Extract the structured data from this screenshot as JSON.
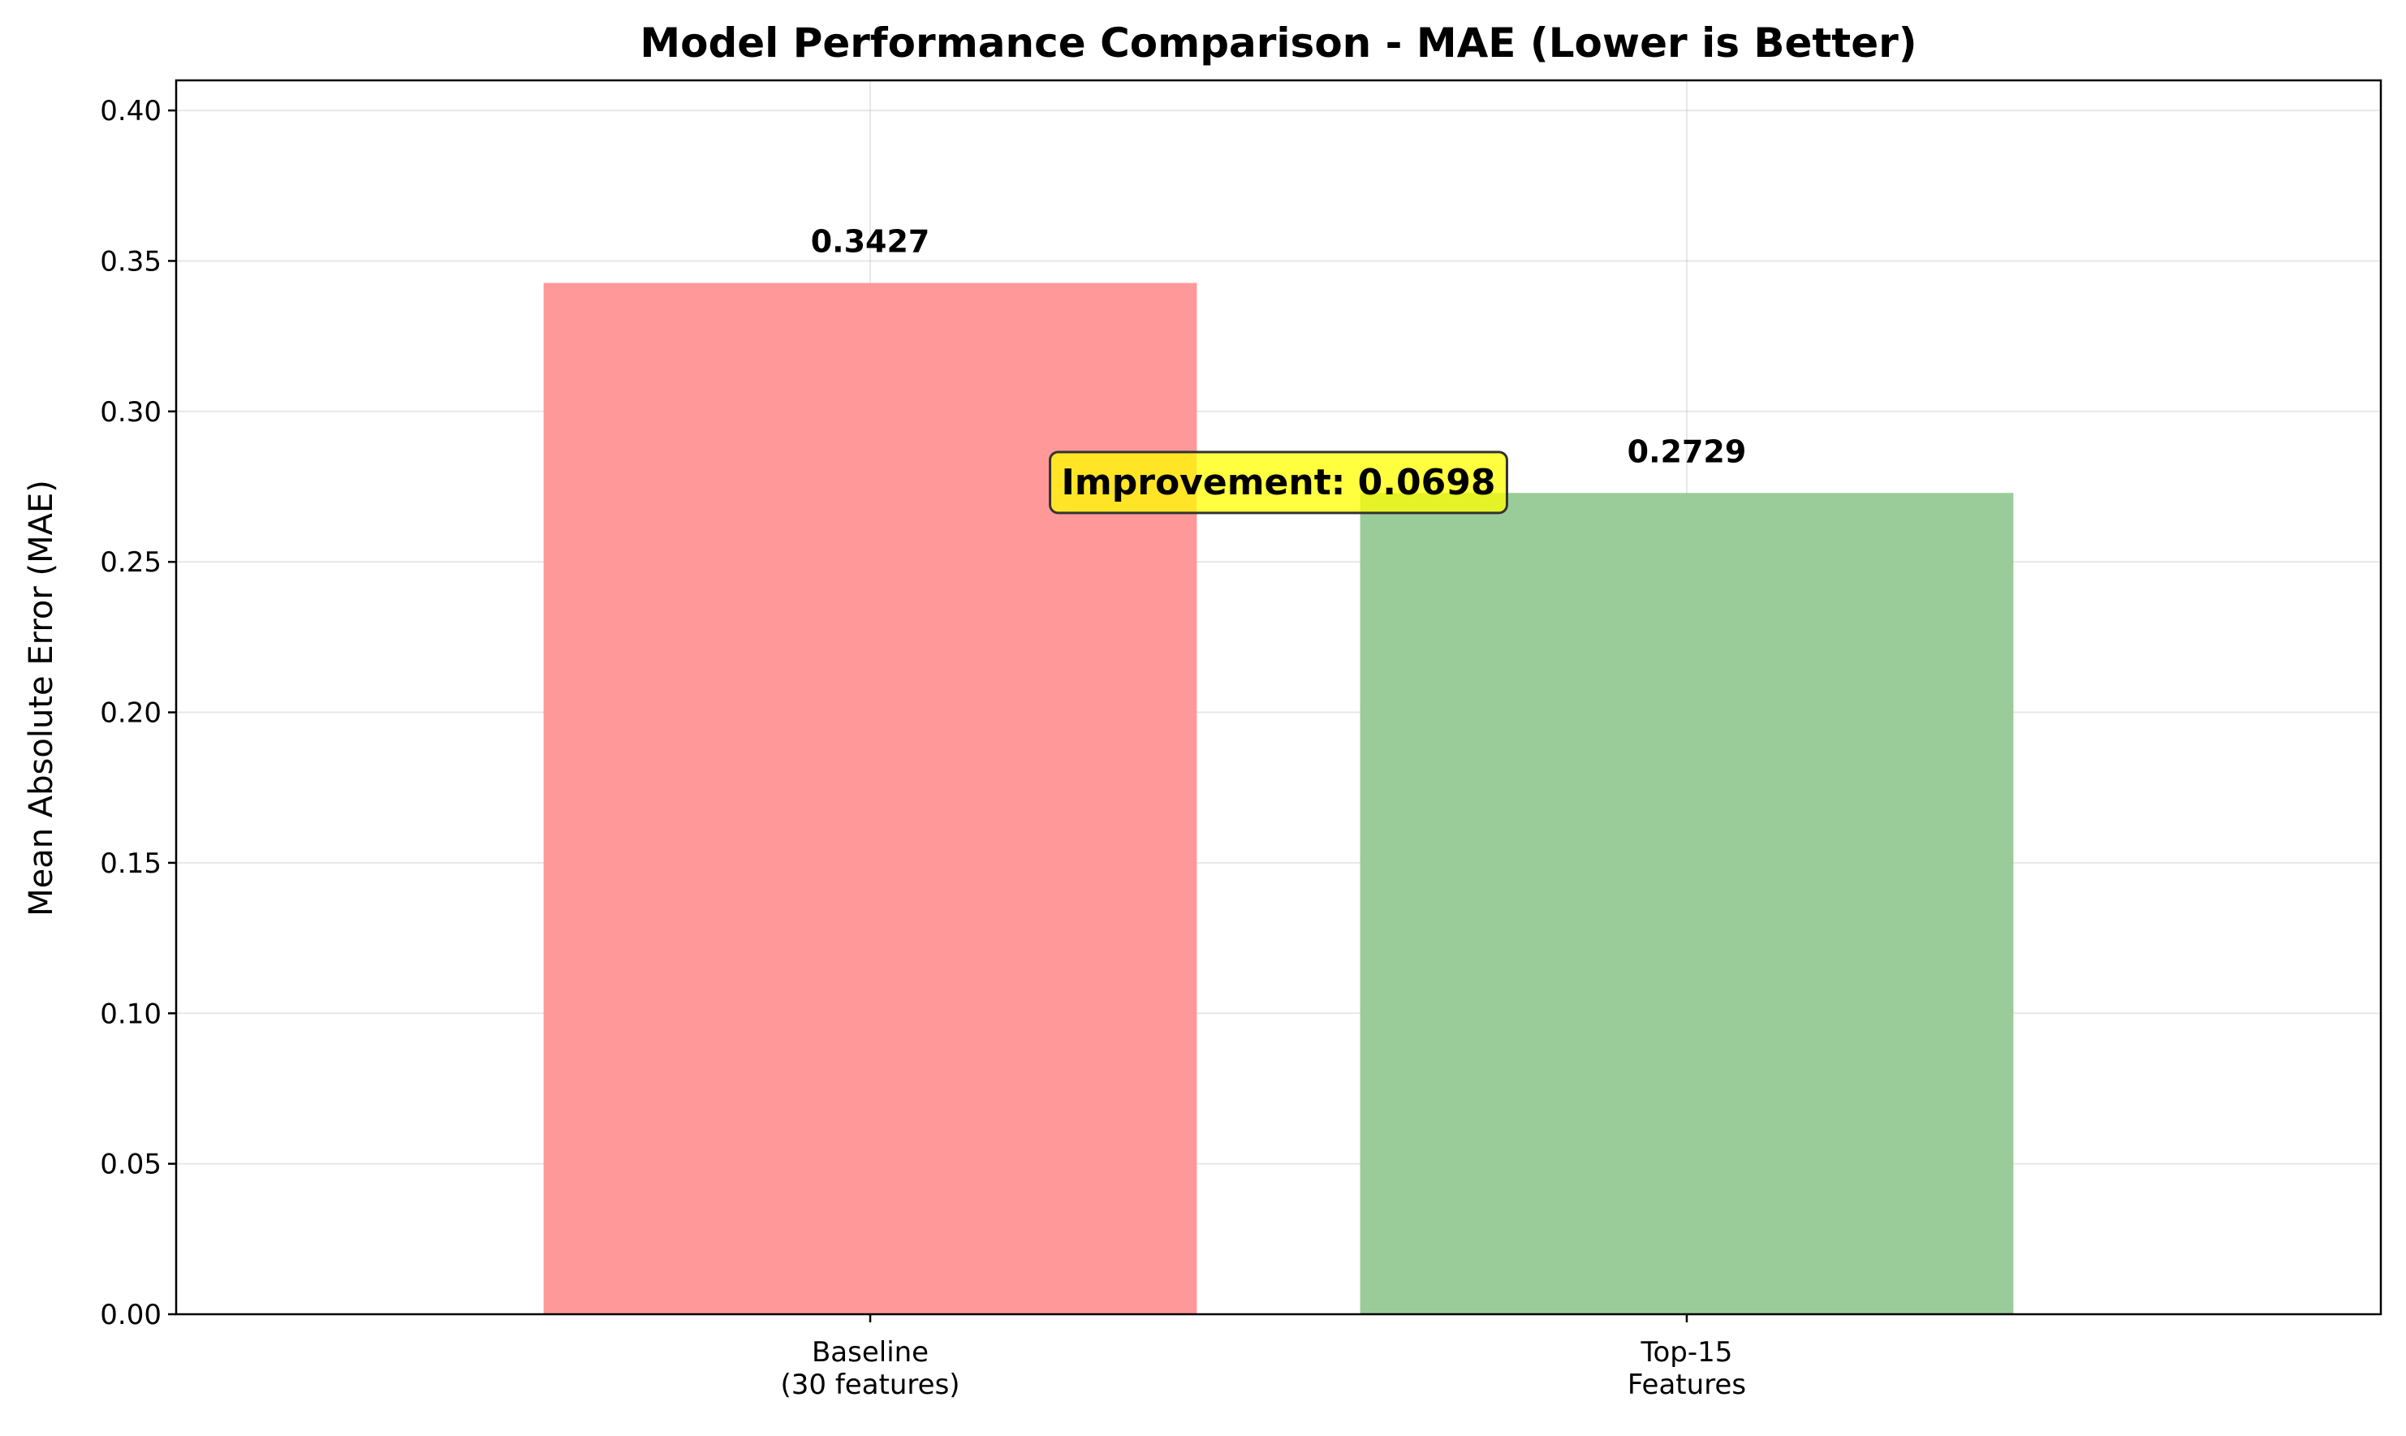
{
  "chart_data": {
    "type": "bar",
    "title": "Model Performance Comparison - MAE (Lower is Better)",
    "xlabel": "",
    "ylabel": "Mean Absolute Error (MAE)",
    "categories": [
      [
        "Baseline",
        "(30 features)"
      ],
      [
        "Top-15",
        "Features"
      ]
    ],
    "values": [
      0.3427,
      0.2729
    ],
    "value_labels": [
      "0.3427",
      "0.2729"
    ],
    "colors": [
      "#ff9999",
      "#99cc99"
    ],
    "ylim": [
      0,
      0.41
    ],
    "yticks": [
      0.0,
      0.05,
      0.1,
      0.15,
      0.2,
      0.25,
      0.3,
      0.35,
      0.4
    ],
    "ytick_labels": [
      "0.00",
      "0.05",
      "0.10",
      "0.15",
      "0.20",
      "0.25",
      "0.30",
      "0.35",
      "0.40"
    ],
    "grid": true,
    "annotation": {
      "text": "Improvement: 0.0698",
      "y": 0.2768,
      "box_color": "#ffff00",
      "border_color": "#333333"
    }
  }
}
